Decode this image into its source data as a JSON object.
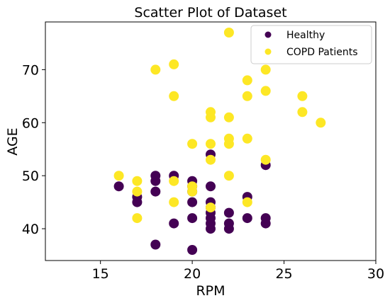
{
  "chart_data": {
    "type": "scatter",
    "title": "Scatter Plot of Dataset",
    "xlabel": "RPM",
    "ylabel": "AGE",
    "xlim": [
      12,
      30
    ],
    "ylim": [
      34,
      79
    ],
    "xticks": [
      15,
      20,
      25,
      30
    ],
    "yticks": [
      40,
      50,
      60,
      70
    ],
    "grid": false,
    "legend_position": "top-right",
    "series": [
      {
        "name": "Healthy",
        "color": "#440154",
        "points": [
          [
            16,
            48
          ],
          [
            17,
            45
          ],
          [
            17,
            46
          ],
          [
            18,
            37
          ],
          [
            18,
            47
          ],
          [
            18,
            49
          ],
          [
            18,
            50
          ],
          [
            19,
            41
          ],
          [
            19,
            50
          ],
          [
            20,
            36
          ],
          [
            20,
            42
          ],
          [
            20,
            45
          ],
          [
            20,
            47
          ],
          [
            20,
            48
          ],
          [
            20,
            49
          ],
          [
            21,
            40
          ],
          [
            21,
            41
          ],
          [
            21,
            42
          ],
          [
            21,
            43
          ],
          [
            21,
            44
          ],
          [
            21,
            45
          ],
          [
            21,
            48
          ],
          [
            21,
            54
          ],
          [
            22,
            40
          ],
          [
            22,
            41
          ],
          [
            22,
            43
          ],
          [
            23,
            42
          ],
          [
            23,
            46
          ],
          [
            24,
            41
          ],
          [
            24,
            42
          ],
          [
            24,
            52
          ]
        ]
      },
      {
        "name": "COPD Patients",
        "color": "#fde725",
        "points": [
          [
            16,
            50
          ],
          [
            17,
            42
          ],
          [
            17,
            47
          ],
          [
            17,
            49
          ],
          [
            18,
            70
          ],
          [
            19,
            45
          ],
          [
            19,
            49
          ],
          [
            19,
            65
          ],
          [
            19,
            71
          ],
          [
            20,
            47
          ],
          [
            20,
            48
          ],
          [
            20,
            56
          ],
          [
            21,
            44
          ],
          [
            21,
            53
          ],
          [
            21,
            56
          ],
          [
            21,
            61
          ],
          [
            21,
            62
          ],
          [
            22,
            50
          ],
          [
            22,
            56
          ],
          [
            22,
            57
          ],
          [
            22,
            61
          ],
          [
            22,
            77
          ],
          [
            23,
            45
          ],
          [
            23,
            57
          ],
          [
            23,
            65
          ],
          [
            23,
            68
          ],
          [
            24,
            53
          ],
          [
            24,
            66
          ],
          [
            24,
            70
          ],
          [
            26,
            62
          ],
          [
            26,
            65
          ],
          [
            27,
            60
          ]
        ]
      }
    ]
  }
}
